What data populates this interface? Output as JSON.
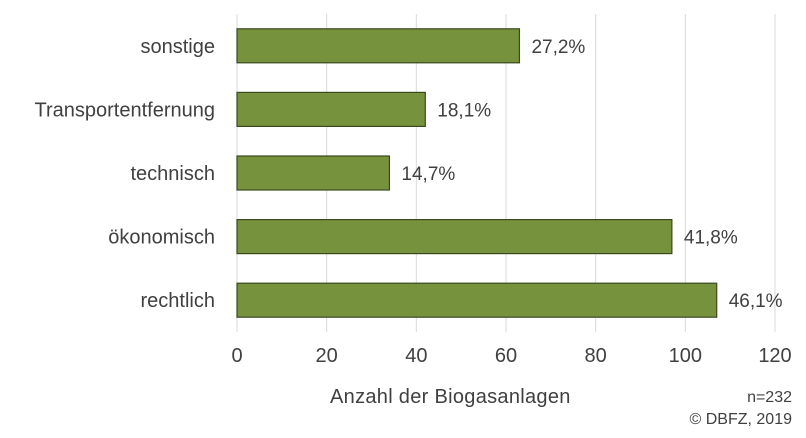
{
  "chart_data": {
    "type": "bar",
    "orientation": "horizontal",
    "categories": [
      "sonstige",
      "Transportentfernung",
      "technisch",
      "ökonomisch",
      "rechtlich"
    ],
    "values": [
      63,
      42,
      34,
      97,
      107
    ],
    "data_labels": [
      "27,2%",
      "18,1%",
      "14,7%",
      "41,8%",
      "46,1%"
    ],
    "x_ticks": [
      "0",
      "20",
      "40",
      "60",
      "80",
      "100",
      "120"
    ],
    "xlim": [
      0,
      120
    ],
    "xlabel": "Anzahl der Biogasanlagen",
    "grid": "vertical",
    "bar_color": "#76923c",
    "bar_edge_color": "#3a4a1e"
  },
  "footer": {
    "n_label": "n=232",
    "copyright": "© DBFZ, 2019"
  }
}
